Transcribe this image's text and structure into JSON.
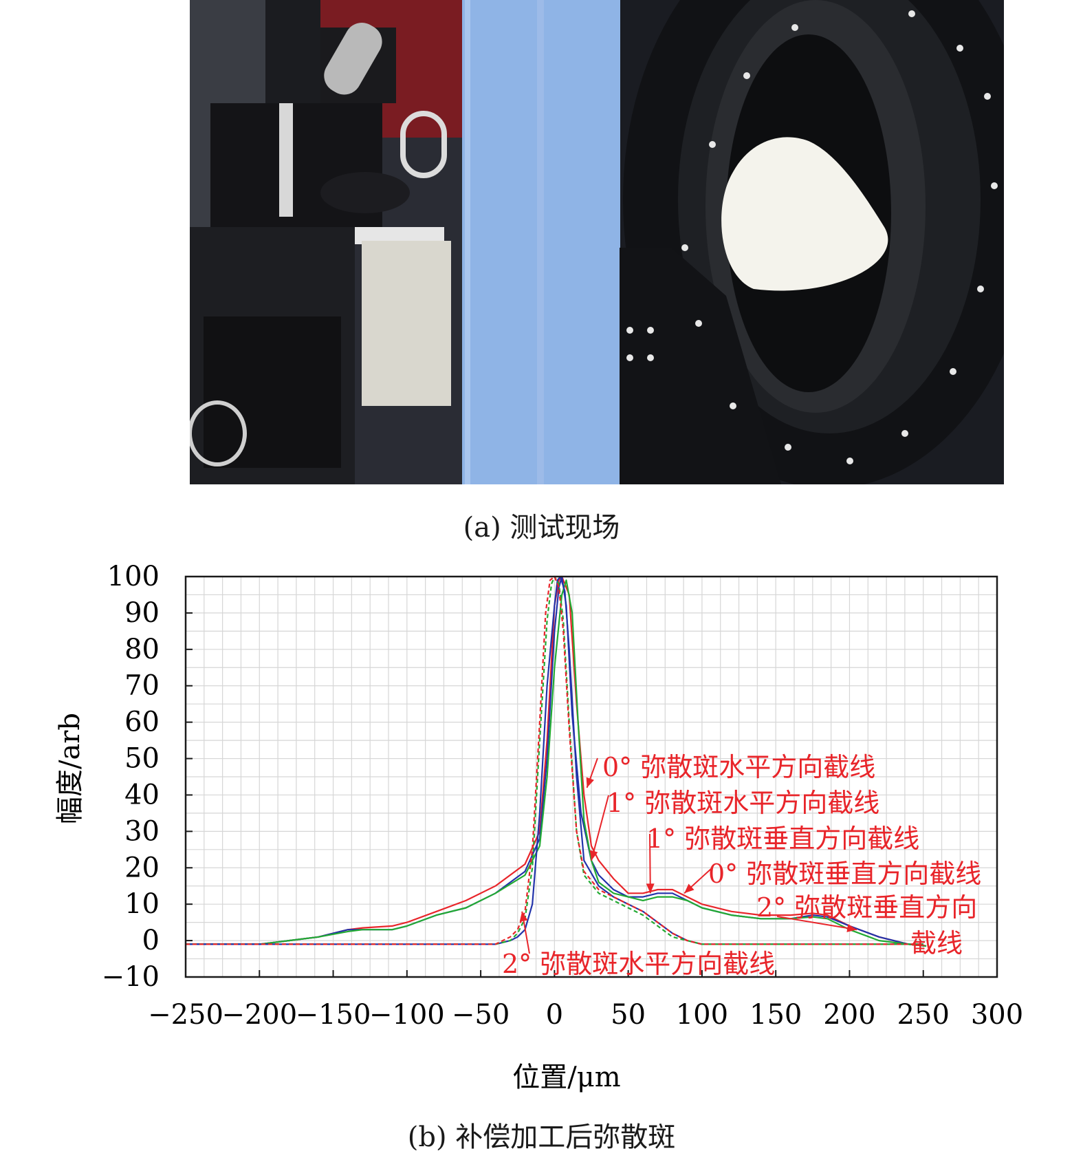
{
  "captions": {
    "a": "(a) 测试现场",
    "b": "(b) 补偿加工后弥散斑"
  },
  "photo_colors": {
    "left_background": "#2a2c34",
    "curtain": "#7a1c22",
    "blue_panel": "#8fb4e6",
    "mount": "#111215",
    "dome": "#f4f3ec"
  },
  "chart_data": {
    "type": "line",
    "xlabel": "位置/μm",
    "ylabel": "幅度/arb",
    "xlim": [
      -250,
      300
    ],
    "ylim": [
      -10,
      100
    ],
    "xticks": [
      -250,
      -200,
      -150,
      -100,
      -50,
      0,
      50,
      100,
      150,
      200,
      250,
      300
    ],
    "yticks": [
      -10,
      0,
      10,
      20,
      30,
      40,
      50,
      60,
      70,
      80,
      90,
      100
    ],
    "grid": true,
    "series": [
      {
        "name": "0° 弥散斑水平方向截线",
        "color": "#e8252a",
        "dash": false,
        "x": [
          -250,
          -200,
          -180,
          -160,
          -140,
          -130,
          -110,
          -100,
          -80,
          -60,
          -40,
          -20,
          -10,
          -5,
          0,
          3,
          5,
          10,
          15,
          20,
          25,
          30,
          40,
          50,
          60,
          70,
          80,
          90,
          100,
          120,
          140,
          160,
          175,
          185,
          200,
          220,
          240,
          252
        ],
        "y": [
          -1,
          -1,
          0,
          1,
          3,
          3.5,
          4,
          5,
          8,
          11,
          15,
          21,
          30,
          55,
          92,
          99,
          100,
          95,
          65,
          40,
          26,
          22,
          17,
          13,
          13,
          14,
          14,
          12,
          10,
          8,
          7,
          7,
          7.5,
          7,
          4,
          1,
          -1,
          -1.5
        ]
      },
      {
        "name": "1° 弥散斑水平方向截线",
        "color": "#2233aa",
        "dash": false,
        "x": [
          -250,
          -200,
          -180,
          -160,
          -140,
          -130,
          -110,
          -100,
          -80,
          -60,
          -40,
          -20,
          -10,
          -5,
          0,
          3,
          5,
          8,
          12,
          18,
          25,
          30,
          40,
          50,
          60,
          70,
          80,
          90,
          100,
          120,
          140,
          160,
          175,
          185,
          200,
          220,
          240,
          252
        ],
        "y": [
          -1,
          -1,
          0,
          1,
          3,
          3,
          3,
          4,
          7,
          9,
          13,
          19,
          28,
          50,
          85,
          97,
          100,
          92,
          62,
          35,
          22,
          18,
          14,
          12,
          12,
          13,
          13,
          11,
          9,
          7,
          6,
          6,
          7,
          6.5,
          4,
          1,
          -1,
          -1.5
        ]
      },
      {
        "name": "1° 弥散斑垂直方向截线",
        "color": "#22aa33",
        "dash": false,
        "x": [
          -250,
          -200,
          -180,
          -160,
          -140,
          -130,
          -110,
          -100,
          -80,
          -60,
          -40,
          -20,
          -10,
          -5,
          0,
          5,
          8,
          12,
          16,
          20,
          25,
          30,
          40,
          50,
          60,
          70,
          80,
          90,
          100,
          120,
          140,
          160,
          175,
          185,
          200,
          220,
          240,
          252
        ],
        "y": [
          -1,
          -1,
          0,
          1,
          2.5,
          3,
          3,
          4,
          7,
          9,
          13,
          18,
          26,
          45,
          75,
          95,
          99,
          90,
          60,
          33,
          22,
          16,
          13,
          12,
          11,
          12,
          12,
          11,
          9,
          7,
          6,
          6,
          6.5,
          6,
          3,
          0,
          -1,
          -1.5
        ]
      },
      {
        "name": "0° 弥散斑垂直方向截线",
        "color": "#2233aa",
        "dash": false,
        "x": [
          -250,
          -200,
          -100,
          -60,
          -40,
          -30,
          -25,
          -20,
          -15,
          -10,
          -5,
          0,
          2,
          4,
          7,
          10,
          15,
          20,
          30,
          40,
          50,
          60,
          70,
          80,
          90,
          100,
          120,
          150,
          200,
          250
        ],
        "y": [
          -1,
          -1,
          -1,
          -1,
          -1,
          0,
          1,
          3,
          10,
          35,
          70,
          92,
          99,
          100,
          96,
          80,
          45,
          22,
          15,
          12,
          10,
          8,
          5,
          2,
          0,
          -1,
          -1,
          -1,
          -1,
          -1
        ]
      },
      {
        "name": "2° 弥散斑垂直方向截线",
        "color": "#22aa33",
        "dash": true,
        "x": [
          -250,
          -200,
          -100,
          -60,
          -40,
          -30,
          -25,
          -20,
          -15,
          -10,
          -5,
          -2,
          0,
          3,
          6,
          10,
          15,
          20,
          30,
          40,
          50,
          60,
          70,
          80,
          90,
          100,
          120,
          150,
          200,
          250
        ],
        "y": [
          -1,
          -1,
          -1,
          -1,
          -1,
          0,
          2,
          6,
          20,
          55,
          88,
          98,
          100,
          98,
          88,
          60,
          30,
          18,
          13,
          11,
          9,
          7,
          4,
          1,
          0,
          -1,
          -1,
          -1,
          -1,
          -1
        ]
      },
      {
        "name": "2° 弥散斑水平方向截线",
        "color": "#e8252a",
        "dash": true,
        "x": [
          -250,
          -200,
          -100,
          -60,
          -40,
          -30,
          -25,
          -20,
          -15,
          -10,
          -6,
          -3,
          0,
          3,
          6,
          10,
          15,
          20,
          30,
          40,
          50,
          60,
          70,
          80,
          90,
          100,
          120,
          150,
          200,
          250
        ],
        "y": [
          -1,
          -1,
          -1,
          -1,
          -1,
          1,
          3,
          8,
          25,
          60,
          90,
          99,
          100,
          97,
          85,
          58,
          30,
          19,
          14,
          12,
          10,
          8,
          5,
          2,
          0,
          -1,
          -1,
          -1,
          -1,
          -1
        ]
      }
    ],
    "annotations": [
      {
        "text": "0° 弥散斑水平方向截线",
        "point": [
          22,
          42
        ]
      },
      {
        "text": "1° 弥散斑水平方向截线",
        "point": [
          25,
          22
        ]
      },
      {
        "text": "1° 弥散斑垂直方向截线",
        "point": [
          65,
          13
        ]
      },
      {
        "text": "0° 弥散斑垂直方向截线",
        "point": [
          88,
          13
        ]
      },
      {
        "text": "2° 弥散斑垂直方向截线",
        "point": [
          205,
          3
        ]
      },
      {
        "text": "2° 弥散斑水平方向截线",
        "point": [
          -22,
          8
        ]
      }
    ],
    "annotation_color": "#e8252a"
  }
}
